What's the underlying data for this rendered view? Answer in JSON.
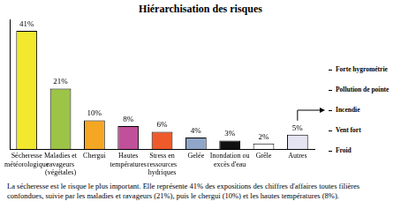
{
  "chart_data": {
    "type": "bar",
    "title": "Hiérarchisation des risques",
    "categories": [
      [
        "Sécheresse",
        "météorologique"
      ],
      [
        "Maladies et",
        "ravageurs",
        "(végétales)"
      ],
      "Chergui",
      [
        "Hautes",
        "températures"
      ],
      [
        "Stress en",
        "ressources",
        "hydriques"
      ],
      "Gelée",
      [
        "Inondation ou",
        "excès d'eau"
      ],
      "Grêle",
      "Autres"
    ],
    "values": [
      41,
      21,
      10,
      8,
      6,
      4,
      3,
      2,
      5
    ],
    "value_labels": [
      "41%",
      "21%",
      "10%",
      "8%",
      "6%",
      "4%",
      "3%",
      "2%",
      "5%"
    ],
    "colors": [
      "#f2e82e",
      "#9cc447",
      "#f5a623",
      "#c0509a",
      "#ef5a2a",
      "#8fa6c8",
      "#111111",
      "#ffffff",
      "#e4e4f2"
    ],
    "ylim": [
      0,
      45
    ],
    "grid": false,
    "data_labels": true,
    "tick_labels": "x",
    "annotations": [
      "Forte hygrométrie",
      "Pollution de pointe",
      "Incendie",
      "Vent fort",
      "Froid"
    ],
    "caption": "La sécheresse est le risque le plus important. Elle représente 41% des expositions des chiffres d'affaires toutes filières confondues, suivie par les maladies et ravageurs (21%), puis le chergui (10%) et les hautes températures (8%)."
  }
}
